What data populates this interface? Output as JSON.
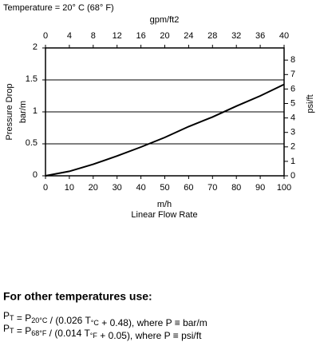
{
  "chart_data": {
    "type": "line",
    "title": "Temperature = 20° C (68° F)",
    "x": [
      0,
      10,
      20,
      30,
      40,
      50,
      60,
      70,
      80,
      90,
      100
    ],
    "values": [
      0,
      0.07,
      0.18,
      0.31,
      0.45,
      0.6,
      0.77,
      0.92,
      1.09,
      1.25,
      1.43
    ],
    "color": "#000000",
    "xlabel": "m/h",
    "xlabel_sub": "Linear Flow Rate",
    "ylabel": "Pressure Drop",
    "ylabel_unit": "bar/m",
    "x2label": "gpm/ft2",
    "y2label": "psi/ft",
    "xlim": [
      0,
      100
    ],
    "xticks": [
      0,
      10,
      20,
      30,
      40,
      50,
      60,
      70,
      80,
      90,
      100
    ],
    "ylim": [
      0,
      2
    ],
    "yticks": [
      0,
      0.5,
      1,
      1.5,
      2
    ],
    "x2lim": [
      0,
      40
    ],
    "x2ticks": [
      0,
      4,
      8,
      12,
      16,
      20,
      24,
      28,
      32,
      36,
      40
    ],
    "y2lim": [
      0,
      8.84
    ],
    "y2ticks": [
      0,
      1,
      2,
      3,
      4,
      5,
      6,
      7,
      8
    ],
    "grid": true
  },
  "footer": {
    "heading": "For other temperatures use:",
    "formulas": [
      [
        {
          "text": "P"
        },
        {
          "text": "T",
          "subscript": true
        },
        {
          "text": " = P"
        },
        {
          "text": "20°C",
          "subscript": true
        },
        {
          "text": " / (0.026 T"
        },
        {
          "text": "°C",
          "subscript": true
        },
        {
          "text": " + 0.48), where P ≡ bar/m"
        }
      ],
      [
        {
          "text": "P"
        },
        {
          "text": "T",
          "subscript": true
        },
        {
          "text": " = P"
        },
        {
          "text": "68°F",
          "subscript": true
        },
        {
          "text": " / (0.014 T"
        },
        {
          "text": "°F",
          "subscript": true
        },
        {
          "text": " + 0.05), where P ≡ psi/ft"
        }
      ]
    ]
  }
}
